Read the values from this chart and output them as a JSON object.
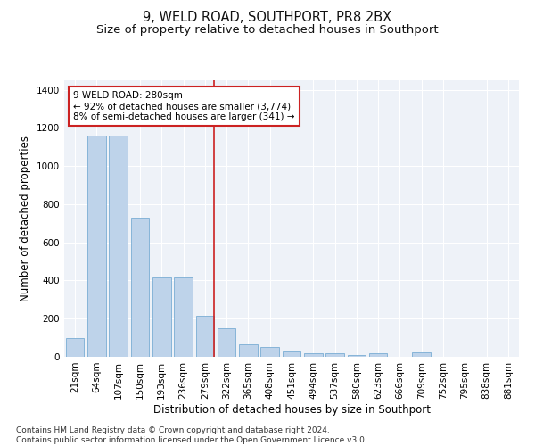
{
  "title": "9, WELD ROAD, SOUTHPORT, PR8 2BX",
  "subtitle": "Size of property relative to detached houses in Southport",
  "xlabel": "Distribution of detached houses by size in Southport",
  "ylabel": "Number of detached properties",
  "categories": [
    "21sqm",
    "64sqm",
    "107sqm",
    "150sqm",
    "193sqm",
    "236sqm",
    "279sqm",
    "322sqm",
    "365sqm",
    "408sqm",
    "451sqm",
    "494sqm",
    "537sqm",
    "580sqm",
    "623sqm",
    "666sqm",
    "709sqm",
    "752sqm",
    "795sqm",
    "838sqm",
    "881sqm"
  ],
  "values": [
    100,
    1160,
    1160,
    730,
    415,
    415,
    215,
    148,
    65,
    50,
    30,
    20,
    18,
    10,
    18,
    0,
    22,
    0,
    0,
    0,
    0
  ],
  "bar_color": "#bed3ea",
  "bar_edge_color": "#7aadd4",
  "marker_index": 6,
  "marker_line_color": "#cc2222",
  "annotation_line1": "9 WELD ROAD: 280sqm",
  "annotation_line2": "← 92% of detached houses are smaller (3,774)",
  "annotation_line3": "8% of semi-detached houses are larger (341) →",
  "annotation_box_color": "#ffffff",
  "annotation_box_edge": "#cc2222",
  "ylim": [
    0,
    1450
  ],
  "yticks": [
    0,
    200,
    400,
    600,
    800,
    1000,
    1200,
    1400
  ],
  "background_color": "#eef2f8",
  "footer": "Contains HM Land Registry data © Crown copyright and database right 2024.\nContains public sector information licensed under the Open Government Licence v3.0.",
  "title_fontsize": 10.5,
  "subtitle_fontsize": 9.5,
  "xlabel_fontsize": 8.5,
  "ylabel_fontsize": 8.5,
  "tick_fontsize": 7.5,
  "annotation_fontsize": 7.5,
  "footer_fontsize": 6.5
}
